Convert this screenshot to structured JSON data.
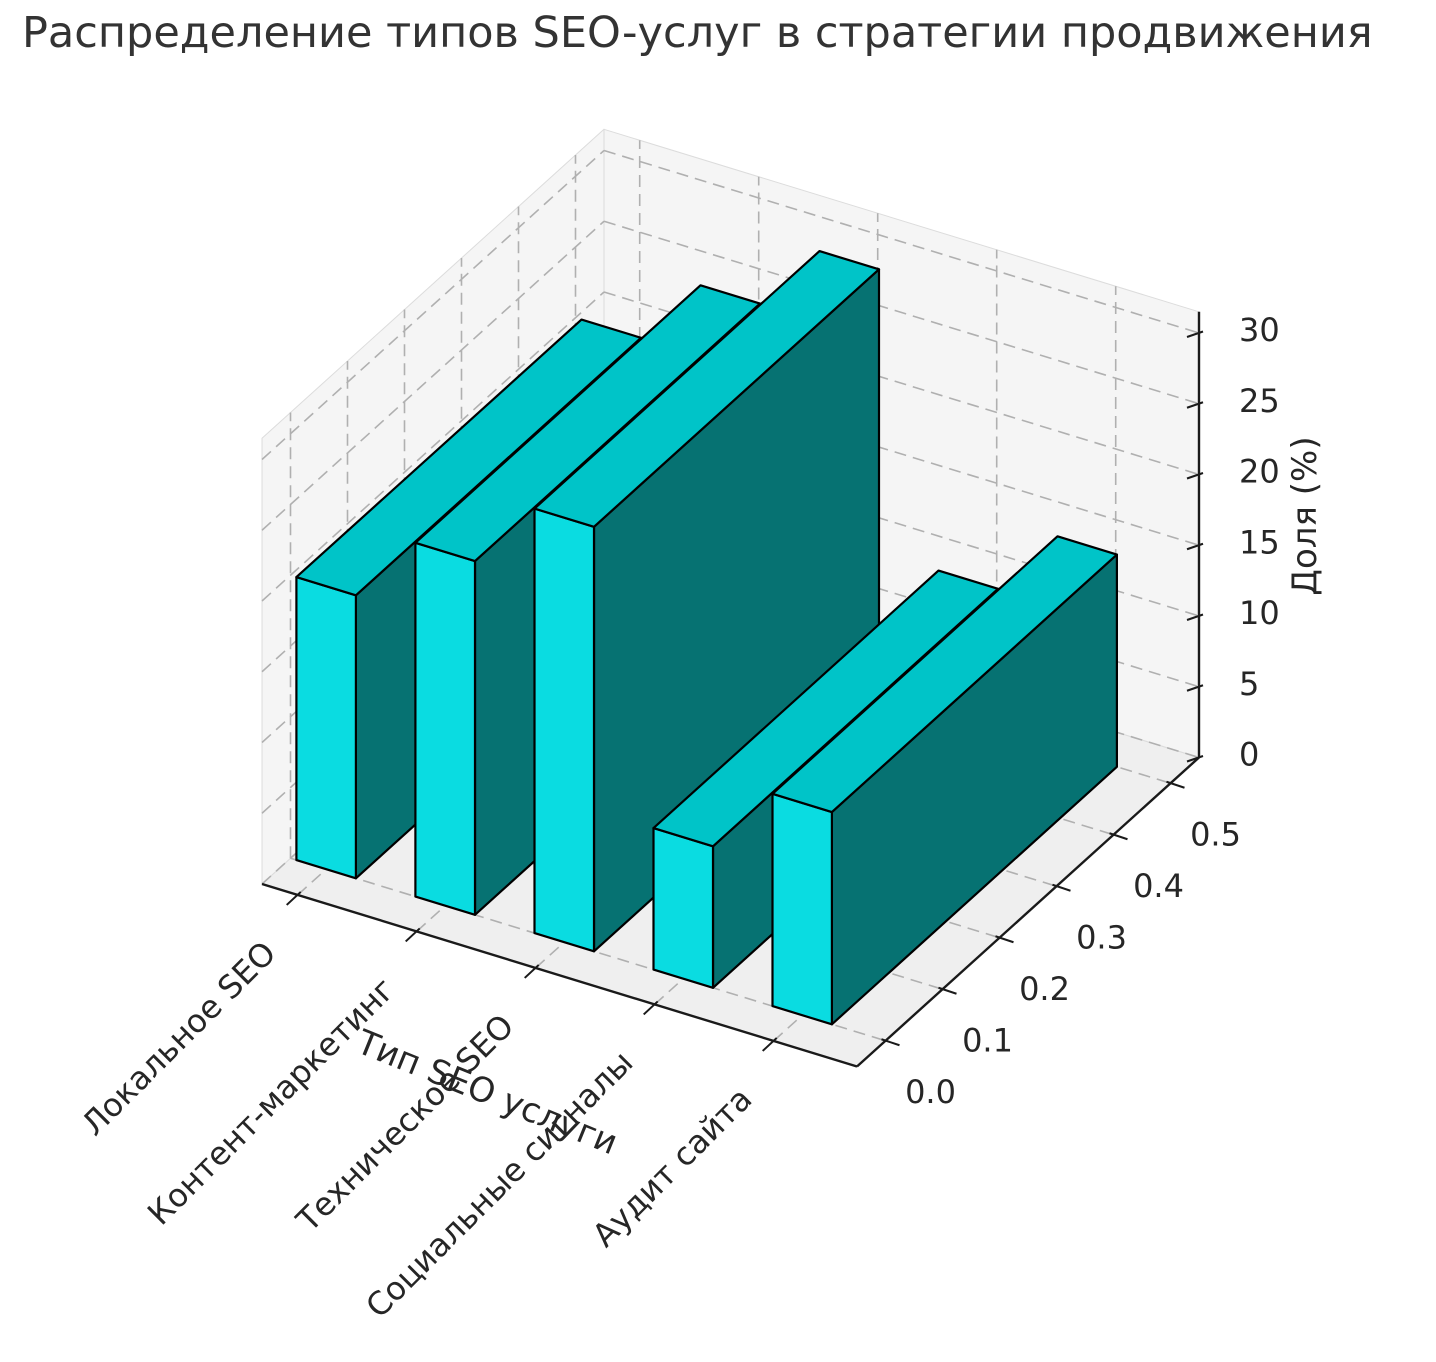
{
  "title": "Распределение типов SEO-услуг в стратегии продвижения",
  "chart_data": {
    "type": "bar",
    "projection": "3d",
    "title": "Распределение типов SEO-услуг в стратегии продвижения",
    "categories": [
      "Локальное SEO",
      "Контент-маркетинг",
      "Техническое SEO",
      "Социальные сигналы",
      "Аудит сайта"
    ],
    "values": [
      20,
      25,
      30,
      10,
      15
    ],
    "xlabel": "Тип SEO услуги",
    "zlabel": "Доля (%)",
    "y_tick_labels": [
      "0.0",
      "0.1",
      "0.2",
      "0.3",
      "0.4",
      "0.5"
    ],
    "z_ticks": [
      0,
      5,
      10,
      15,
      20,
      25,
      30
    ],
    "zlim": [
      0,
      30
    ],
    "grid": true,
    "legend": false,
    "colors": {
      "bar_front": "#0ADCE1",
      "bar_top": "#00C4C8",
      "bar_side": "#067272",
      "bar_edge": "#000000",
      "wall": "#f5f5f5",
      "floor": "#efefef",
      "pane_edge": "#dcdcdc",
      "grid_line": "#b0b0b0",
      "axis_line": "#1a1a1a",
      "text": "#262626",
      "title_text": "#333333"
    }
  }
}
